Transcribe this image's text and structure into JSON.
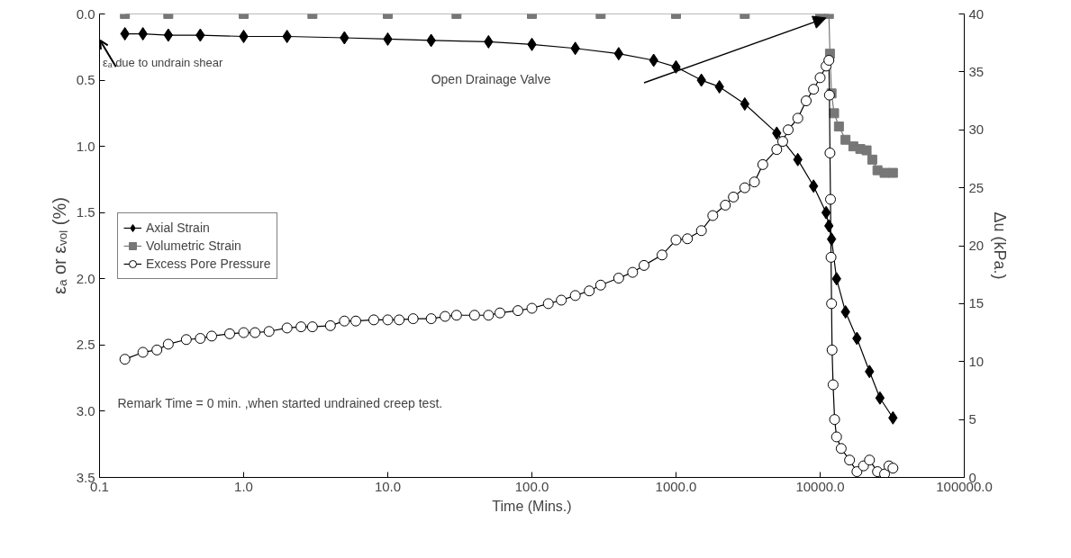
{
  "chart_data": {
    "type": "line",
    "xlabel": "Time (Mins.)",
    "ylabel": "εₐ or εᵥₒₗ (%)",
    "y2label": "Δu (kPa.)",
    "log": "x",
    "xlim": [
      0.1,
      100000
    ],
    "xticks": [
      {
        "value": 0.1,
        "label": "0.1"
      },
      {
        "value": 1,
        "label": "1.0"
      },
      {
        "value": 10,
        "label": "10.0"
      },
      {
        "value": 100,
        "label": "100.0"
      },
      {
        "value": 1000,
        "label": "1000.0"
      },
      {
        "value": 10000,
        "label": "10000.0"
      },
      {
        "value": 100000,
        "label": "100000.0"
      }
    ],
    "ylim": [
      3.5,
      0
    ],
    "yticks": [
      {
        "value": 0,
        "label": "0.0"
      },
      {
        "value": 0.5,
        "label": "0.5"
      },
      {
        "value": 1,
        "label": "1.0"
      },
      {
        "value": 1.5,
        "label": "1.5"
      },
      {
        "value": 2,
        "label": "2.0"
      },
      {
        "value": 2.5,
        "label": "2.5"
      },
      {
        "value": 3,
        "label": "3.0"
      },
      {
        "value": 3.5,
        "label": "3.5"
      }
    ],
    "y2lim": [
      0,
      40
    ],
    "y2ticks": [
      0,
      5,
      10,
      15,
      20,
      25,
      30,
      35,
      40
    ],
    "grid": false,
    "legend": "left",
    "series": [
      {
        "name": "Axial Strain",
        "color": "#000000",
        "marker": "diamond",
        "x": [
          0.15,
          0.2,
          0.3,
          0.5,
          1,
          2,
          5,
          10,
          20,
          50,
          100,
          200,
          400,
          700,
          1000,
          1500,
          2000,
          3000,
          5000,
          7000,
          9000,
          11000,
          11500,
          12000,
          13000,
          15000,
          18000,
          22000,
          26000,
          32000
        ],
        "values": [
          0.15,
          0.15,
          0.16,
          0.16,
          0.17,
          0.17,
          0.18,
          0.19,
          0.2,
          0.21,
          0.23,
          0.26,
          0.3,
          0.35,
          0.4,
          0.5,
          0.55,
          0.68,
          0.9,
          1.1,
          1.3,
          1.5,
          1.6,
          1.7,
          2.0,
          2.25,
          2.45,
          2.7,
          2.9,
          3.05
        ]
      },
      {
        "name": "Volumetric Strain",
        "color": "#777777",
        "marker": "square",
        "x": [
          0.15,
          0.3,
          1,
          3,
          10,
          30,
          100,
          300,
          1000,
          3000,
          10000,
          11500,
          11700,
          12000,
          12500,
          13500,
          15000,
          17000,
          19000,
          21000,
          23000,
          25000,
          28000,
          32000
        ],
        "values": [
          0,
          0,
          0,
          0,
          0,
          0,
          0,
          0,
          0,
          0,
          0,
          0,
          0.3,
          0.6,
          0.75,
          0.85,
          0.95,
          1.0,
          1.02,
          1.03,
          1.1,
          1.18,
          1.2,
          1.2
        ]
      },
      {
        "name": "Excess Pore Pressure",
        "color": "#000000",
        "marker": "circle",
        "axis": "y2",
        "x": [
          0.15,
          0.2,
          0.25,
          0.3,
          0.4,
          0.5,
          0.6,
          0.8,
          1,
          1.2,
          1.5,
          2,
          2.5,
          3,
          4,
          5,
          6,
          8,
          10,
          12,
          15,
          20,
          25,
          30,
          40,
          50,
          60,
          80,
          100,
          130,
          160,
          200,
          250,
          300,
          400,
          500,
          600,
          800,
          1000,
          1200,
          1500,
          1800,
          2200,
          2500,
          3000,
          3500,
          4000,
          5000,
          5500,
          6000,
          7000,
          8000,
          9000,
          10000,
          11000,
          11500,
          11600,
          11700,
          11800,
          11900,
          12000,
          12100,
          12300,
          12600,
          13000,
          14000,
          16000,
          18000,
          20000,
          22000,
          25000,
          28000,
          30000,
          32000
        ],
        "values": [
          10.2,
          10.8,
          11.0,
          11.5,
          11.9,
          12.0,
          12.2,
          12.4,
          12.5,
          12.5,
          12.6,
          12.9,
          13.0,
          13.0,
          13.1,
          13.5,
          13.5,
          13.6,
          13.6,
          13.6,
          13.7,
          13.7,
          13.9,
          14.0,
          14.0,
          14.0,
          14.2,
          14.4,
          14.6,
          15.0,
          15.3,
          15.7,
          16.1,
          16.6,
          17.2,
          17.7,
          18.3,
          19.2,
          20.5,
          20.6,
          21.3,
          22.6,
          23.5,
          24.2,
          25.0,
          25.5,
          27.0,
          28.3,
          29.0,
          30.0,
          31.0,
          32.5,
          33.5,
          34.5,
          35.5,
          36.0,
          33.0,
          28.0,
          24.0,
          19.0,
          15.0,
          11.0,
          8.0,
          5.0,
          3.5,
          2.5,
          1.5,
          0.5,
          1.0,
          1.5,
          0.5,
          0.3,
          1.0,
          0.8
        ]
      }
    ],
    "annotations": [
      "εₐ due to undrain shear",
      "Open Drainage Valve",
      "Remark Time = 0 min. ,when started undrained creep test."
    ]
  }
}
